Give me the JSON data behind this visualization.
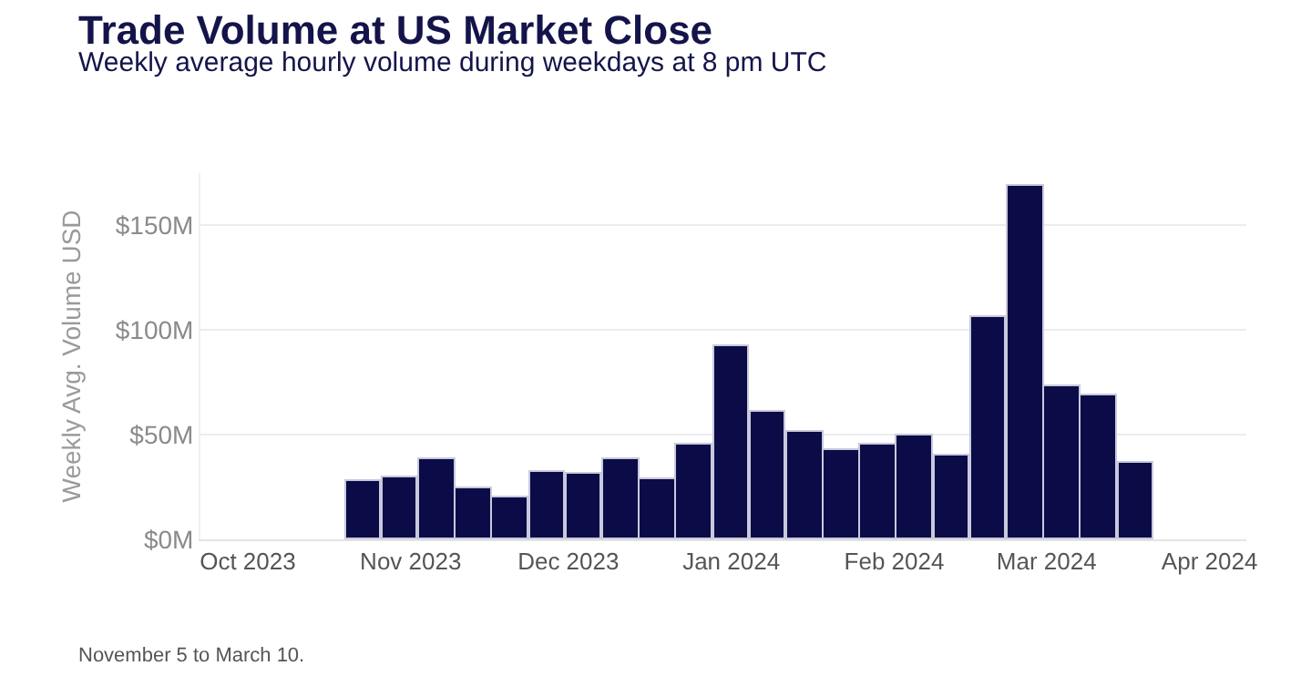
{
  "chart_data": {
    "type": "bar",
    "title": "Trade Volume at US Market Close",
    "subtitle": "Weekly average hourly volume during weekdays at 8 pm UTC",
    "ylabel": "Weekly Avg. Volume USD",
    "x": [
      "2023-10-23",
      "2023-10-30",
      "2023-11-06",
      "2023-11-13",
      "2023-11-20",
      "2023-11-27",
      "2023-12-04",
      "2023-12-11",
      "2023-12-18",
      "2023-12-25",
      "2024-01-01",
      "2024-01-08",
      "2024-01-15",
      "2024-01-22",
      "2024-01-29",
      "2024-02-05",
      "2024-02-12",
      "2024-02-19",
      "2024-02-26",
      "2024-03-04",
      "2024-03-11",
      "2024-03-18"
    ],
    "series": [
      {
        "color": "#0b0b48",
        "values": [
          28,
          30,
          38,
          24,
          20,
          32,
          31,
          38,
          29,
          45,
          92,
          61,
          51,
          43,
          45,
          50,
          40,
          106,
          169,
          73,
          69,
          37
        ]
      }
    ],
    "ylim": [
      0,
      175
    ],
    "yticks": [
      {
        "value": 0,
        "label": "$0M"
      },
      {
        "value": 50,
        "label": "$50M"
      },
      {
        "value": 100,
        "label": "$100M"
      },
      {
        "value": 150,
        "label": "$150M"
      }
    ],
    "xlim": [
      "2023-09-22",
      "2024-04-08"
    ],
    "xticks": [
      {
        "value": "2023-10-01",
        "label": "Oct 2023"
      },
      {
        "value": "2023-11-01",
        "label": "Nov 2023"
      },
      {
        "value": "2023-12-01",
        "label": "Dec 2023"
      },
      {
        "value": "2024-01-01",
        "label": "Jan 2024"
      },
      {
        "value": "2024-02-01",
        "label": "Feb 2024"
      },
      {
        "value": "2024-03-01",
        "label": "Mar 2024"
      },
      {
        "value": "2024-04-01",
        "label": "Apr 2024"
      }
    ],
    "grid": "y",
    "annotations": [
      "November 5 to March 10."
    ]
  }
}
